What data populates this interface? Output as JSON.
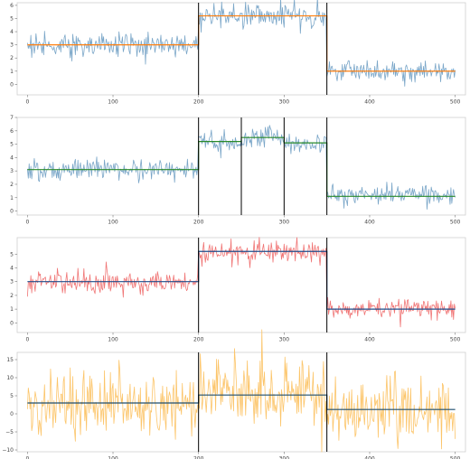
{
  "chart_data": [
    {
      "type": "line",
      "title": "",
      "xlabel": "",
      "ylabel": "",
      "xlim": [
        -12,
        512
      ],
      "ylim": [
        -0.8,
        6.2
      ],
      "xticks": [
        0,
        100,
        200,
        300,
        400,
        500
      ],
      "yticks": [
        0,
        1,
        2,
        3,
        4,
        5,
        6
      ],
      "changepoints": [
        200,
        350
      ],
      "grid": false,
      "series": [
        {
          "color": "#7aa6c8",
          "kind": "noisy-signal",
          "segments": [
            {
              "x": [
                0,
                199
              ],
              "mean": 3.0,
              "std": 0.45
            },
            {
              "x": [
                200,
                349
              ],
              "mean": 5.2,
              "std": 0.45
            },
            {
              "x": [
                350,
                500
              ],
              "mean": 1.0,
              "std": 0.45
            }
          ]
        },
        {
          "color": "#ff7f0e",
          "kind": "step-fit",
          "x": [
            0,
            200,
            200,
            350,
            350,
            500
          ],
          "y": [
            3.0,
            3.0,
            5.2,
            5.2,
            1.0,
            1.0
          ]
        }
      ]
    },
    {
      "type": "line",
      "title": "",
      "xlabel": "",
      "ylabel": "",
      "xlim": [
        -12,
        512
      ],
      "ylim": [
        -0.3,
        7.0
      ],
      "xticks": [
        0,
        100,
        200,
        300,
        400,
        500
      ],
      "yticks": [
        0,
        1,
        2,
        3,
        4,
        5,
        6,
        7
      ],
      "changepoints": [
        200,
        250,
        300,
        350
      ],
      "grid": false,
      "series": [
        {
          "color": "#7aa6c8",
          "kind": "noisy-signal",
          "segments": [
            {
              "x": [
                0,
                199
              ],
              "mean": 3.1,
              "std": 0.35
            },
            {
              "x": [
                200,
                249
              ],
              "mean": 5.2,
              "std": 0.4
            },
            {
              "x": [
                250,
                299
              ],
              "mean": 5.5,
              "std": 0.4
            },
            {
              "x": [
                300,
                349
              ],
              "mean": 5.1,
              "std": 0.4
            },
            {
              "x": [
                350,
                500
              ],
              "mean": 1.2,
              "std": 0.4
            }
          ]
        },
        {
          "color": "#2a8a2a",
          "kind": "step-fit",
          "x": [
            0,
            200,
            200,
            250,
            250,
            300,
            300,
            350,
            350,
            500
          ],
          "y": [
            3.1,
            3.1,
            5.2,
            5.2,
            5.5,
            5.5,
            5.1,
            5.1,
            1.1,
            1.1
          ]
        }
      ]
    },
    {
      "type": "line",
      "title": "",
      "xlabel": "",
      "ylabel": "",
      "xlim": [
        -12,
        512
      ],
      "ylim": [
        -0.7,
        6.2
      ],
      "xticks": [
        0,
        100,
        200,
        300,
        400,
        500
      ],
      "yticks": [
        0,
        1,
        2,
        3,
        4,
        5
      ],
      "changepoints": [
        200,
        350
      ],
      "grid": false,
      "series": [
        {
          "color": "#f07575",
          "kind": "noisy-signal",
          "segments": [
            {
              "x": [
                0,
                199
              ],
              "mean": 2.9,
              "std": 0.4
            },
            {
              "x": [
                200,
                349
              ],
              "mean": 5.1,
              "std": 0.4
            },
            {
              "x": [
                350,
                500
              ],
              "mean": 1.0,
              "std": 0.4
            }
          ]
        },
        {
          "color": "#1f4e8c",
          "kind": "step-fit",
          "x": [
            0,
            200,
            200,
            350,
            350,
            500
          ],
          "y": [
            3.0,
            3.0,
            5.2,
            5.2,
            1.0,
            1.0
          ]
        }
      ]
    },
    {
      "type": "line",
      "title": "",
      "xlabel": "",
      "ylabel": "",
      "xlim": [
        -12,
        512
      ],
      "ylim": [
        -10.5,
        17
      ],
      "xticks": [
        0,
        100,
        200,
        300,
        400,
        500
      ],
      "yticks": [
        -10,
        -5,
        0,
        5,
        10,
        15
      ],
      "changepoints": [
        200,
        350
      ],
      "grid": false,
      "series": [
        {
          "color": "#fcc56a",
          "kind": "noisy-signal",
          "segments": [
            {
              "x": [
                0,
                199
              ],
              "mean": 2.8,
              "std": 4.6
            },
            {
              "x": [
                200,
                349
              ],
              "mean": 5.4,
              "std": 4.6
            },
            {
              "x": [
                350,
                500
              ],
              "mean": 1.2,
              "std": 4.6
            }
          ]
        },
        {
          "color": "#1f4e6e",
          "kind": "step-fit",
          "x": [
            0,
            200,
            200,
            350,
            350,
            500
          ],
          "y": [
            3.0,
            3.0,
            5.2,
            5.2,
            1.2,
            1.2
          ]
        }
      ]
    }
  ]
}
